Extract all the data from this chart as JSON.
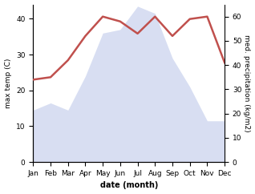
{
  "months": [
    "Jan",
    "Feb",
    "Mar",
    "Apr",
    "May",
    "Jun",
    "Jul",
    "Aug",
    "Sep",
    "Oct",
    "Nov",
    "Dec"
  ],
  "max_temp": [
    14.5,
    16.5,
    14.5,
    24.0,
    36.0,
    37.0,
    43.5,
    41.5,
    29.0,
    21.0,
    11.5,
    11.5
  ],
  "precipitation": [
    34,
    35,
    42,
    52,
    60,
    58,
    53,
    60,
    52,
    59,
    60,
    41
  ],
  "temp_color": "#c0504d",
  "precip_fill_color": "#b8c4e8",
  "temp_ylim": [
    0,
    44
  ],
  "precip_ylim": [
    0,
    65
  ],
  "temp_yticks": [
    0,
    10,
    20,
    30,
    40
  ],
  "precip_yticks": [
    0,
    10,
    20,
    30,
    40,
    50,
    60
  ],
  "ylabel_left": "max temp (C)",
  "ylabel_right": "med. precipitation (kg/m2)",
  "xlabel": "date (month)",
  "bg_color": "#ffffff",
  "line_width": 1.8,
  "label_fontsize": 6.5,
  "tick_fontsize": 6.5
}
